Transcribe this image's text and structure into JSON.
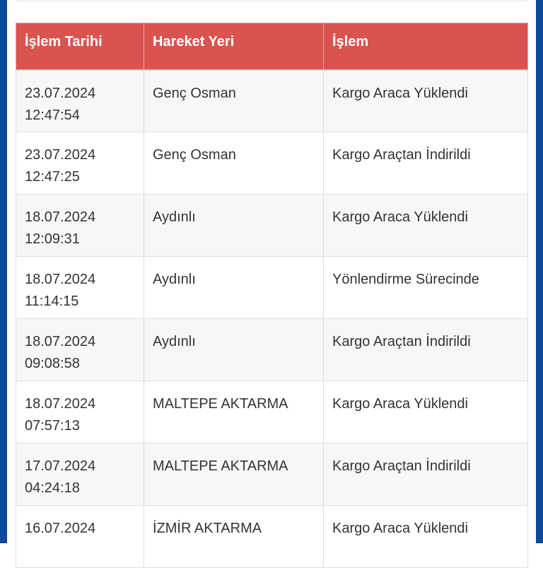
{
  "colors": {
    "header": "#d9534f",
    "side_bars": "#0b4a9a"
  },
  "table": {
    "headers": [
      "İşlem Tarihi",
      "Hareket Yeri",
      "İşlem"
    ],
    "rows": [
      {
        "date": "23.07.2024",
        "time": "12:47:54",
        "place": "Genç Osman",
        "action": "Kargo Araca Yüklendi"
      },
      {
        "date": "23.07.2024",
        "time": "12:47:25",
        "place": "Genç Osman",
        "action": "Kargo Araçtan İndirildi"
      },
      {
        "date": "18.07.2024",
        "time": "12:09:31",
        "place": "Aydınlı",
        "action": "Kargo Araca Yüklendi"
      },
      {
        "date": "18.07.2024",
        "time": "11:14:15",
        "place": "Aydınlı",
        "action": "Yönlendirme Sürecinde"
      },
      {
        "date": "18.07.2024",
        "time": "09:08:58",
        "place": "Aydınlı",
        "action": "Kargo Araçtan İndirildi"
      },
      {
        "date": "18.07.2024",
        "time": "07:57:13",
        "place": "MALTEPE AKTARMA",
        "action": "Kargo Araca Yüklendi"
      },
      {
        "date": "17.07.2024",
        "time": "04:24:18",
        "place": "MALTEPE AKTARMA",
        "action": "Kargo Araçtan İndirildi"
      },
      {
        "date": "16.07.2024",
        "time": "",
        "place": "İZMİR AKTARMA",
        "action": "Kargo Araca Yüklendi"
      }
    ]
  }
}
